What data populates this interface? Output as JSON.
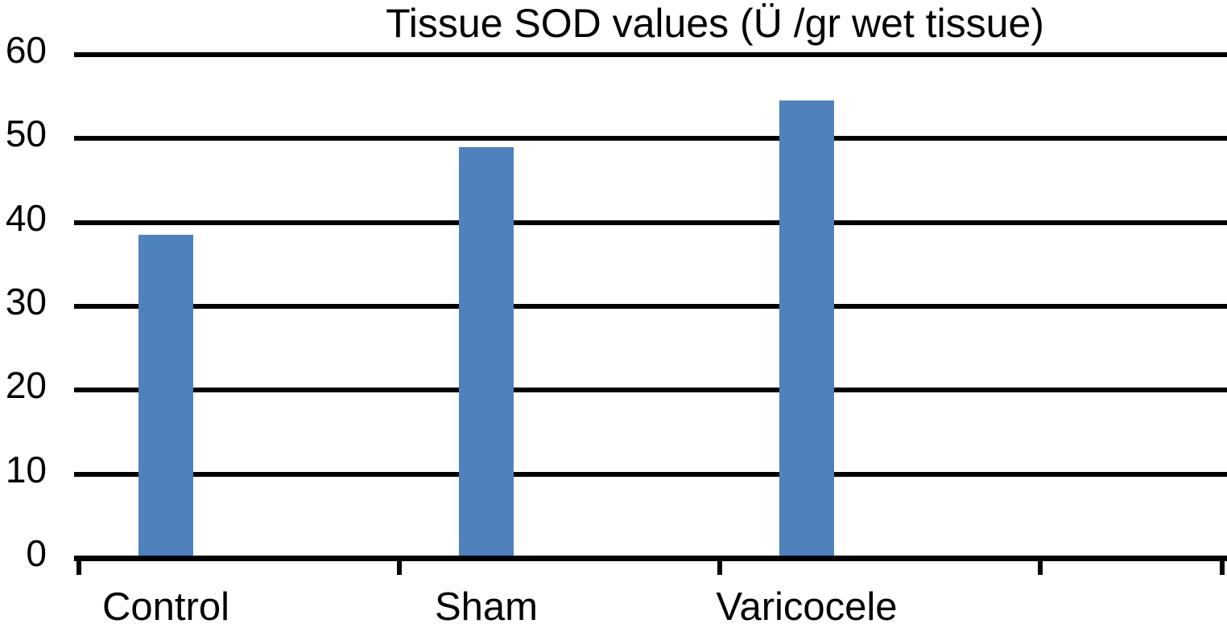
{
  "chart_data": {
    "type": "bar",
    "title": "Tissue SOD values (Ü /gr wet tissue)",
    "categories": [
      "Control",
      "Sham",
      "Varicocele"
    ],
    "values": [
      38.5,
      49,
      54.5
    ],
    "xlabel": "",
    "ylabel": "",
    "ylim": [
      0,
      60
    ],
    "yticks": [
      0,
      10,
      20,
      30,
      40,
      50,
      60
    ],
    "grid": "horizontal-black",
    "legend": "none",
    "bar_color": "#4F81BD",
    "axis_color": "#000000",
    "background_color": "#FFFFFF"
  }
}
